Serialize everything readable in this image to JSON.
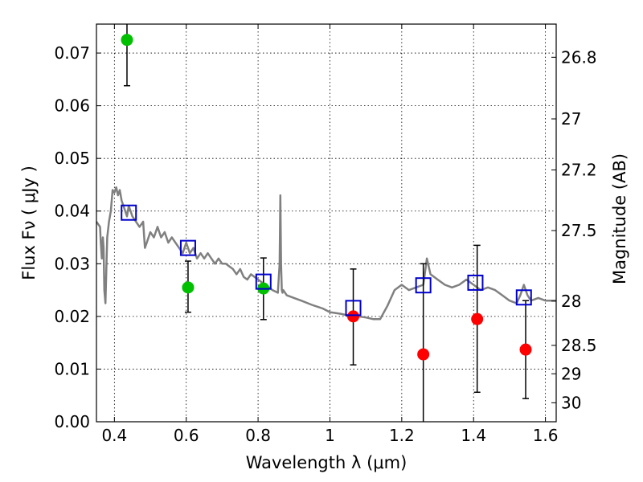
{
  "chart_data": {
    "type": "scatter",
    "xlabel": "Wavelength  λ (μm)",
    "ylabel": "Flux  Fν  ( μJy )",
    "ylabel_right": "Magnitude (AB)",
    "xlim": [
      0.35,
      1.63
    ],
    "ylim": [
      0.0,
      0.0755
    ],
    "x_ticks": [
      0.4,
      0.6,
      0.8,
      1.0,
      1.2,
      1.4,
      1.6
    ],
    "x_tick_labels": [
      "0.4",
      "0.6",
      "0.8",
      "1",
      "1.2",
      "1.4",
      "1.6"
    ],
    "y_ticks": [
      0.0,
      0.01,
      0.02,
      0.03,
      0.04,
      0.05,
      0.06,
      0.07
    ],
    "y_tick_labels": [
      "0.00",
      "0.01",
      "0.02",
      "0.03",
      "0.04",
      "0.05",
      "0.06",
      "0.07"
    ],
    "right_ticks": [
      {
        "label": "26.8",
        "flux": 0.0692
      },
      {
        "label": "27",
        "flux": 0.0575
      },
      {
        "label": "27.2",
        "flux": 0.0478
      },
      {
        "label": "27.5",
        "flux": 0.0363
      },
      {
        "label": "28",
        "flux": 0.0229
      },
      {
        "label": "28.5",
        "flux": 0.0145
      },
      {
        "label": "29",
        "flux": 0.0091
      },
      {
        "label": "30",
        "flux": 0.0036
      }
    ],
    "model_spectrum": {
      "name": "Model SED",
      "color": "#808080",
      "x": [
        0.35,
        0.36,
        0.362,
        0.365,
        0.368,
        0.37,
        0.372,
        0.375,
        0.378,
        0.38,
        0.385,
        0.39,
        0.395,
        0.4,
        0.405,
        0.41,
        0.415,
        0.42,
        0.425,
        0.43,
        0.435,
        0.44,
        0.45,
        0.46,
        0.47,
        0.48,
        0.485,
        0.49,
        0.5,
        0.51,
        0.52,
        0.53,
        0.54,
        0.55,
        0.56,
        0.57,
        0.58,
        0.59,
        0.6,
        0.61,
        0.62,
        0.63,
        0.64,
        0.65,
        0.66,
        0.67,
        0.68,
        0.69,
        0.7,
        0.71,
        0.72,
        0.73,
        0.74,
        0.75,
        0.76,
        0.77,
        0.78,
        0.8,
        0.82,
        0.84,
        0.855,
        0.86,
        0.862,
        0.864,
        0.866,
        0.868,
        0.87,
        0.88,
        0.9,
        0.92,
        0.95,
        0.98,
        1.0,
        1.03,
        1.05,
        1.08,
        1.1,
        1.12,
        1.14,
        1.16,
        1.18,
        1.2,
        1.22,
        1.24,
        1.26,
        1.27,
        1.28,
        1.3,
        1.32,
        1.34,
        1.36,
        1.38,
        1.4,
        1.42,
        1.44,
        1.46,
        1.48,
        1.5,
        1.52,
        1.53,
        1.54,
        1.55,
        1.56,
        1.58,
        1.6,
        1.63
      ],
      "y": [
        0.038,
        0.037,
        0.034,
        0.031,
        0.035,
        0.033,
        0.025,
        0.0225,
        0.03,
        0.035,
        0.038,
        0.04,
        0.044,
        0.0435,
        0.0445,
        0.043,
        0.044,
        0.042,
        0.041,
        0.04,
        0.039,
        0.041,
        0.039,
        0.038,
        0.037,
        0.038,
        0.033,
        0.034,
        0.036,
        0.035,
        0.037,
        0.035,
        0.036,
        0.034,
        0.035,
        0.034,
        0.033,
        0.032,
        0.034,
        0.032,
        0.033,
        0.031,
        0.032,
        0.031,
        0.032,
        0.031,
        0.03,
        0.031,
        0.03,
        0.03,
        0.0295,
        0.029,
        0.028,
        0.029,
        0.0275,
        0.027,
        0.028,
        0.027,
        0.026,
        0.025,
        0.0245,
        0.03,
        0.043,
        0.03,
        0.025,
        0.0245,
        0.025,
        0.024,
        0.0235,
        0.023,
        0.0222,
        0.0215,
        0.0208,
        0.0205,
        0.0202,
        0.02,
        0.0198,
        0.0195,
        0.0195,
        0.022,
        0.025,
        0.026,
        0.025,
        0.0255,
        0.026,
        0.031,
        0.028,
        0.027,
        0.026,
        0.0255,
        0.026,
        0.027,
        0.026,
        0.025,
        0.0255,
        0.025,
        0.024,
        0.023,
        0.0225,
        0.024,
        0.026,
        0.024,
        0.023,
        0.0235,
        0.023,
        0.023
      ]
    },
    "series": [
      {
        "name": "green points",
        "marker": "circle",
        "color": "#00c000",
        "x": [
          0.435,
          0.605,
          0.815
        ],
        "y": [
          0.0725,
          0.0255,
          0.0253
        ],
        "err_low": [
          0.0638,
          0.0208,
          0.0194
        ],
        "err_high": [
          0.0755,
          0.0305,
          0.0311
        ]
      },
      {
        "name": "red points",
        "marker": "circle",
        "color": "#ff0000",
        "x": [
          1.065,
          1.26,
          1.41,
          1.545
        ],
        "y": [
          0.02,
          0.0128,
          0.0195,
          0.0137
        ],
        "err_low": [
          0.0108,
          0.0,
          0.0056,
          0.0044
        ],
        "err_high": [
          0.029,
          0.03,
          0.0335,
          0.023
        ]
      },
      {
        "name": "model photometry",
        "marker": "open-square",
        "color": "#0000cc",
        "x": [
          0.44,
          0.605,
          0.815,
          1.065,
          1.26,
          1.405,
          1.54
        ],
        "y": [
          0.0397,
          0.033,
          0.0266,
          0.0216,
          0.0259,
          0.0264,
          0.0236
        ]
      }
    ]
  }
}
